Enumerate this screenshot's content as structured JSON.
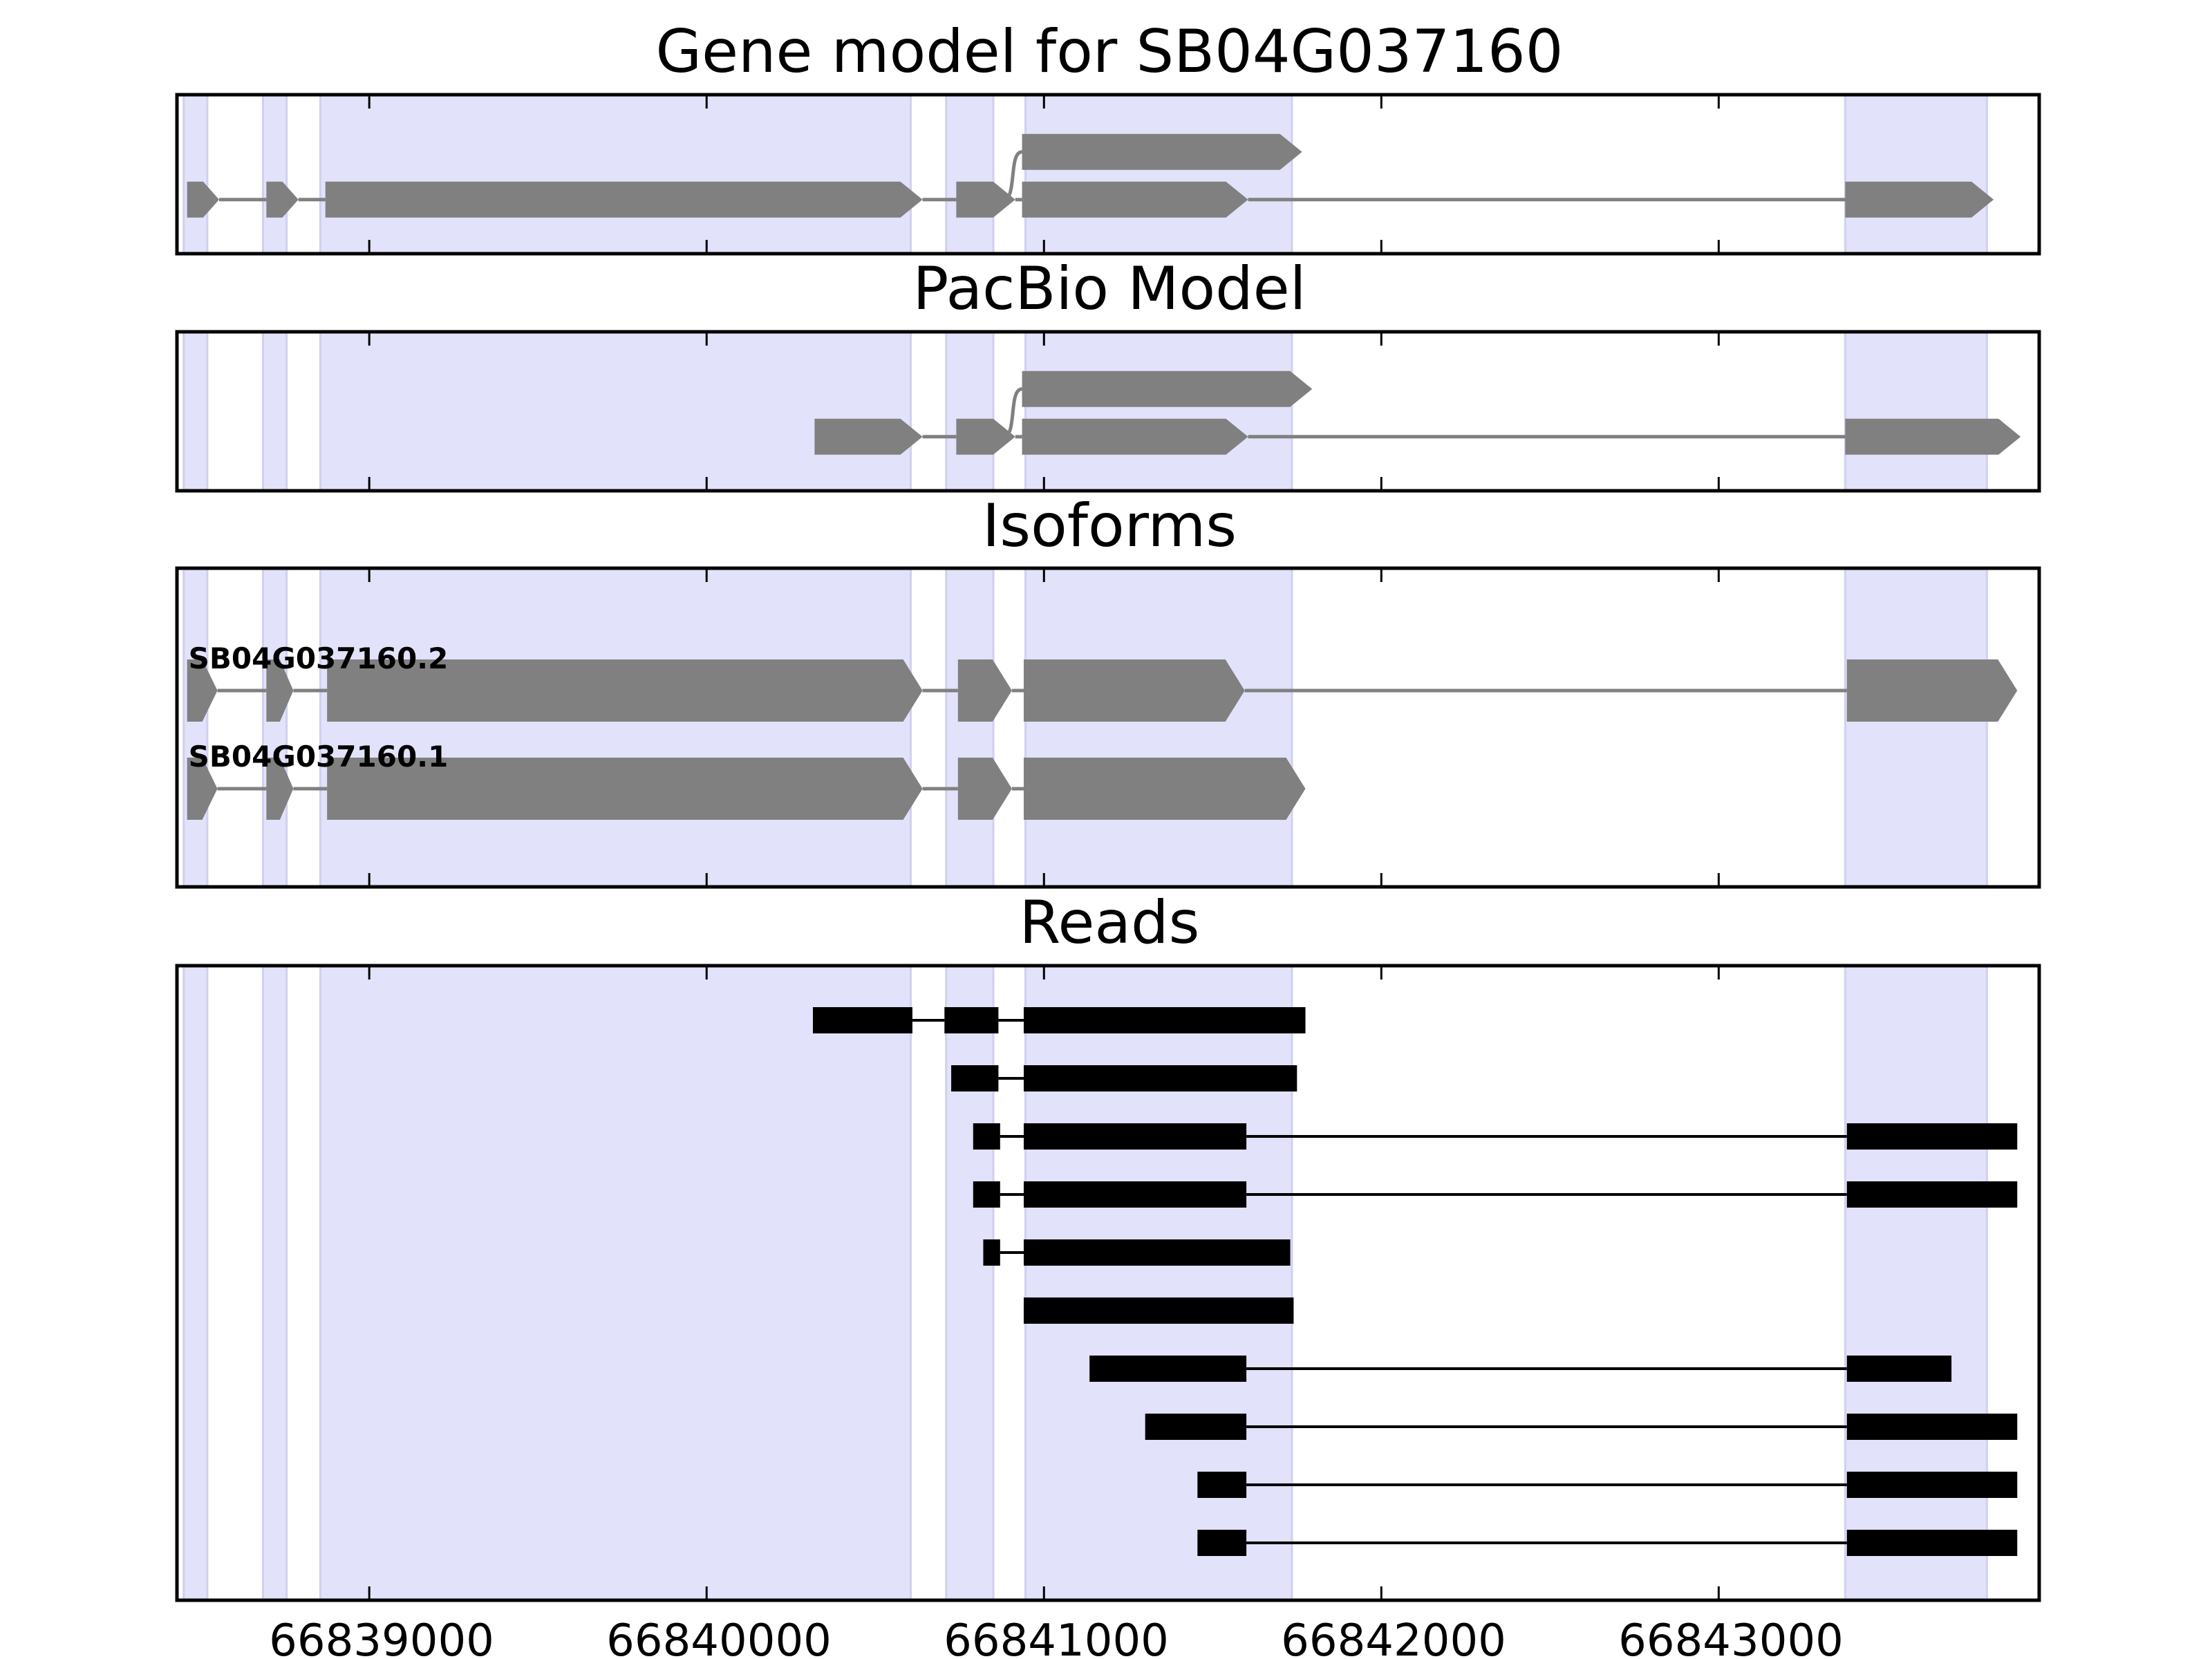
{
  "figure": {
    "panels": [
      {
        "id": "gene",
        "title": "Gene model for SB04G037160"
      },
      {
        "id": "pacbio",
        "title": "PacBio Model"
      },
      {
        "id": "isoforms",
        "title": "Isoforms"
      },
      {
        "id": "reads",
        "title": "Reads"
      }
    ],
    "x_ticks": [
      "66839000",
      "66840000",
      "66841000",
      "66842000",
      "66843000"
    ]
  },
  "colors": {
    "exon_model": "#808080",
    "read": "#000000",
    "highlight": "#e2e2fb",
    "highlight_edge": "#d0d0ee",
    "frame": "#000000"
  },
  "chart_data": {
    "type": "gene-track",
    "x_range": [
      66838430,
      66843950
    ],
    "x_ticks": [
      66839000,
      66840000,
      66841000,
      66842000,
      66843000
    ],
    "highlight_regions": [
      [
        66838450,
        66838520
      ],
      [
        66838685,
        66838755
      ],
      [
        66838855,
        66840605
      ],
      [
        66840710,
        66840850
      ],
      [
        66840945,
        66841735
      ],
      [
        66843375,
        66843795
      ]
    ],
    "gene_model": [
      {
        "exons": [
          [
            66838460,
            66838555
          ],
          [
            66838695,
            66838790
          ],
          [
            66838870,
            66840640
          ],
          [
            66840740,
            66840915
          ],
          [
            66840935,
            66841605
          ],
          [
            66843375,
            66843815
          ]
        ],
        "strand": "+"
      },
      {
        "exons": [
          [
            66840935,
            66841765
          ]
        ],
        "strand": "+",
        "joins_from": 66840880
      }
    ],
    "pacbio_model": [
      {
        "exons": [
          [
            66840320,
            66840640
          ],
          [
            66840740,
            66840915
          ],
          [
            66840935,
            66841605
          ],
          [
            66843375,
            66843895
          ]
        ],
        "strand": "+"
      },
      {
        "exons": [
          [
            66840935,
            66841795
          ]
        ],
        "strand": "+",
        "joins_from": 66840880
      }
    ],
    "isoforms": [
      {
        "name": "SB04G037160.2",
        "exons": [
          [
            66838460,
            66838550
          ],
          [
            66838695,
            66838775
          ],
          [
            66838875,
            66840640
          ],
          [
            66840745,
            66840905
          ],
          [
            66840940,
            66841595
          ],
          [
            66843380,
            66843885
          ]
        ],
        "strand": "+"
      },
      {
        "name": "SB04G037160.1",
        "exons": [
          [
            66838460,
            66838550
          ],
          [
            66838695,
            66838775
          ],
          [
            66838875,
            66840640
          ],
          [
            66840745,
            66840905
          ],
          [
            66840940,
            66841775
          ]
        ],
        "strand": "+"
      }
    ],
    "reads": [
      [
        [
          66840315,
          66840610
        ],
        [
          66840705,
          66840865
        ],
        [
          66840940,
          66841775
        ]
      ],
      [
        [
          66840725,
          66840865
        ],
        [
          66840940,
          66841750
        ]
      ],
      [
        [
          66840790,
          66840870
        ],
        [
          66840940,
          66841600
        ],
        [
          66843380,
          66843885
        ]
      ],
      [
        [
          66840790,
          66840870
        ],
        [
          66840940,
          66841600
        ],
        [
          66843380,
          66843885
        ]
      ],
      [
        [
          66840820,
          66840870
        ],
        [
          66840940,
          66841730
        ]
      ],
      [
        [
          66840940,
          66841740
        ]
      ],
      [
        [
          66841135,
          66841600
        ],
        [
          66843380,
          66843690
        ]
      ],
      [
        [
          66841300,
          66841600
        ],
        [
          66843380,
          66843885
        ]
      ],
      [
        [
          66841455,
          66841600
        ],
        [
          66843380,
          66843885
        ]
      ],
      [
        [
          66841455,
          66841600
        ],
        [
          66843380,
          66843885
        ]
      ]
    ]
  }
}
